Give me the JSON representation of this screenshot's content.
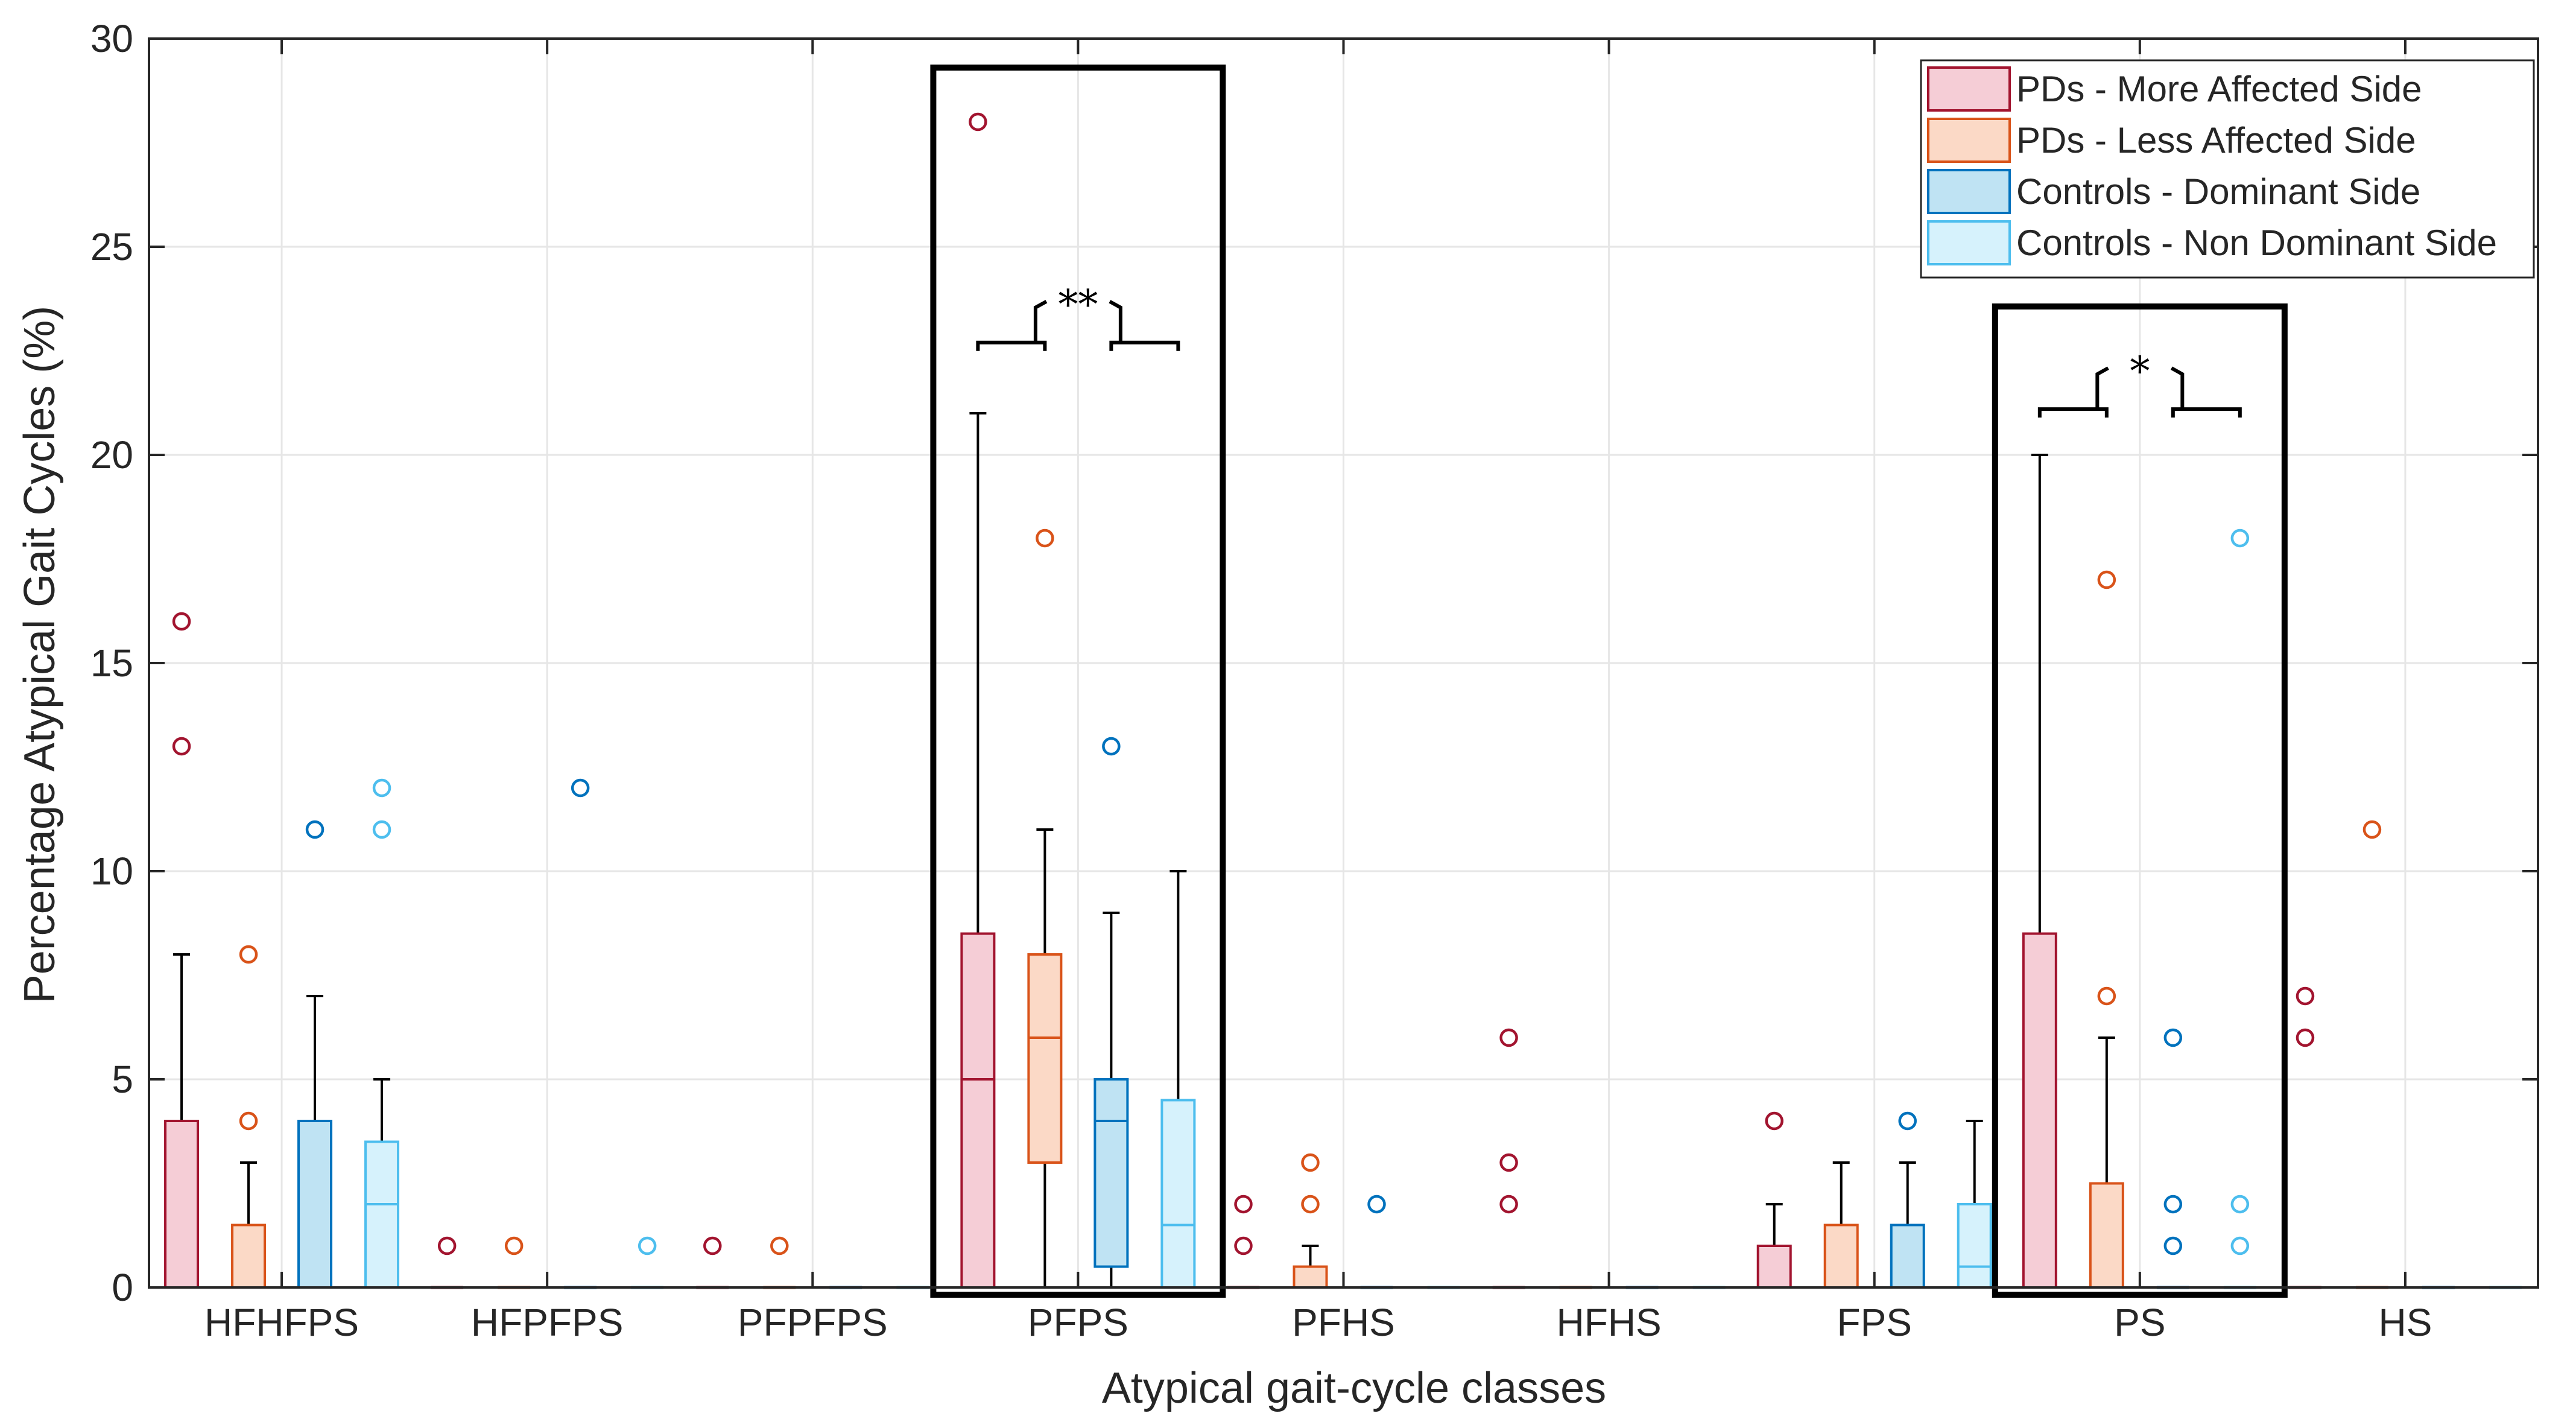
{
  "chart_data": {
    "type": "box",
    "title": "",
    "xlabel": "Atypical gait-cycle classes",
    "ylabel": "Percentage Atypical Gait Cycles (%)",
    "ylim": [
      0,
      30
    ],
    "yticks": [
      0,
      5,
      10,
      15,
      20,
      25,
      30
    ],
    "grid": true,
    "legend_position": "top-right",
    "categories": [
      "HFHFPS",
      "HFPFPS",
      "PFPFPS",
      "PFPS",
      "PFHS",
      "HFHS",
      "FPS",
      "PS",
      "HS"
    ],
    "series": [
      {
        "name": "PDs - More Affected Side",
        "edge": "#a2142f",
        "fill": "#f5cdd6",
        "boxes": [
          {
            "q1": 0,
            "median": 0,
            "q3": 4,
            "whisker_low": 0,
            "whisker_high": 8,
            "outliers": [
              13,
              16
            ]
          },
          {
            "q1": 0,
            "median": 0,
            "q3": 0,
            "whisker_low": 0,
            "whisker_high": 0,
            "outliers": [
              1
            ]
          },
          {
            "q1": 0,
            "median": 0,
            "q3": 0,
            "whisker_low": 0,
            "whisker_high": 0,
            "outliers": [
              1
            ]
          },
          {
            "q1": 0,
            "median": 5,
            "q3": 8.5,
            "whisker_low": 0,
            "whisker_high": 21,
            "outliers": [
              28
            ]
          },
          {
            "q1": 0,
            "median": 0,
            "q3": 0,
            "whisker_low": 0,
            "whisker_high": 0,
            "outliers": [
              1,
              2
            ]
          },
          {
            "q1": 0,
            "median": 0,
            "q3": 0,
            "whisker_low": 0,
            "whisker_high": 0,
            "outliers": [
              2,
              3,
              6
            ]
          },
          {
            "q1": 0,
            "median": 0,
            "q3": 1,
            "whisker_low": 0,
            "whisker_high": 2,
            "outliers": [
              4
            ]
          },
          {
            "q1": 0,
            "median": 0,
            "q3": 8.5,
            "whisker_low": 0,
            "whisker_high": 20,
            "outliers": []
          },
          {
            "q1": 0,
            "median": 0,
            "q3": 0,
            "whisker_low": 0,
            "whisker_high": 0,
            "outliers": [
              6,
              7
            ]
          }
        ]
      },
      {
        "name": "PDs - Less Affected Side",
        "edge": "#d95319",
        "fill": "#fbd9c6",
        "boxes": [
          {
            "q1": 0,
            "median": 0,
            "q3": 1.5,
            "whisker_low": 0,
            "whisker_high": 3,
            "outliers": [
              4,
              8
            ]
          },
          {
            "q1": 0,
            "median": 0,
            "q3": 0,
            "whisker_low": 0,
            "whisker_high": 0,
            "outliers": [
              1
            ]
          },
          {
            "q1": 0,
            "median": 0,
            "q3": 0,
            "whisker_low": 0,
            "whisker_high": 0,
            "outliers": [
              1
            ]
          },
          {
            "q1": 3,
            "median": 6,
            "q3": 8,
            "whisker_low": 0,
            "whisker_high": 11,
            "outliers": [
              18
            ]
          },
          {
            "q1": 0,
            "median": 0,
            "q3": 0.5,
            "whisker_low": 0,
            "whisker_high": 1,
            "outliers": [
              2,
              3
            ]
          },
          {
            "q1": 0,
            "median": 0,
            "q3": 0,
            "whisker_low": 0,
            "whisker_high": 0,
            "outliers": []
          },
          {
            "q1": 0,
            "median": 0,
            "q3": 1.5,
            "whisker_low": 0,
            "whisker_high": 3,
            "outliers": []
          },
          {
            "q1": 0,
            "median": 0,
            "q3": 2.5,
            "whisker_low": 0,
            "whisker_high": 6,
            "outliers": [
              7,
              17
            ]
          },
          {
            "q1": 0,
            "median": 0,
            "q3": 0,
            "whisker_low": 0,
            "whisker_high": 0,
            "outliers": [
              11
            ]
          }
        ]
      },
      {
        "name": "Controls - Dominant Side",
        "edge": "#0072bd",
        "fill": "#bfe3f3",
        "boxes": [
          {
            "q1": 0,
            "median": 0,
            "q3": 4,
            "whisker_low": 0,
            "whisker_high": 7,
            "outliers": [
              11
            ]
          },
          {
            "q1": 0,
            "median": 0,
            "q3": 0,
            "whisker_low": 0,
            "whisker_high": 0,
            "outliers": [
              12
            ]
          },
          {
            "q1": 0,
            "median": 0,
            "q3": 0,
            "whisker_low": 0,
            "whisker_high": 0,
            "outliers": []
          },
          {
            "q1": 0.5,
            "median": 4,
            "q3": 5,
            "whisker_low": 0,
            "whisker_high": 9,
            "outliers": [
              13
            ]
          },
          {
            "q1": 0,
            "median": 0,
            "q3": 0,
            "whisker_low": 0,
            "whisker_high": 0,
            "outliers": [
              2
            ]
          },
          {
            "q1": 0,
            "median": 0,
            "q3": 0,
            "whisker_low": 0,
            "whisker_high": 0,
            "outliers": []
          },
          {
            "q1": 0,
            "median": 0,
            "q3": 1.5,
            "whisker_low": 0,
            "whisker_high": 3,
            "outliers": [
              4
            ]
          },
          {
            "q1": 0,
            "median": 0,
            "q3": 0,
            "whisker_low": 0,
            "whisker_high": 0,
            "outliers": [
              1,
              2,
              6
            ]
          },
          {
            "q1": 0,
            "median": 0,
            "q3": 0,
            "whisker_low": 0,
            "whisker_high": 0,
            "outliers": []
          }
        ]
      },
      {
        "name": "Controls - Non Dominant Side",
        "edge": "#4dbeee",
        "fill": "#d6f2fc",
        "boxes": [
          {
            "q1": 0,
            "median": 2,
            "q3": 3.5,
            "whisker_low": 0,
            "whisker_high": 5,
            "outliers": [
              11,
              12
            ]
          },
          {
            "q1": 0,
            "median": 0,
            "q3": 0,
            "whisker_low": 0,
            "whisker_high": 0,
            "outliers": [
              1
            ]
          },
          {
            "q1": 0,
            "median": 0,
            "q3": 0,
            "whisker_low": 0,
            "whisker_high": 0,
            "outliers": []
          },
          {
            "q1": 0,
            "median": 1.5,
            "q3": 4.5,
            "whisker_low": 0,
            "whisker_high": 10,
            "outliers": []
          },
          {
            "q1": 0,
            "median": 0,
            "q3": 0,
            "whisker_low": 0,
            "whisker_high": 0,
            "outliers": []
          },
          {
            "q1": 0,
            "median": 0,
            "q3": 0,
            "whisker_low": 0,
            "whisker_high": 0,
            "outliers": []
          },
          {
            "q1": 0,
            "median": 0.5,
            "q3": 2,
            "whisker_low": 0,
            "whisker_high": 4,
            "outliers": []
          },
          {
            "q1": 0,
            "median": 0,
            "q3": 0,
            "whisker_low": 0,
            "whisker_high": 0,
            "outliers": [
              1,
              2,
              18
            ]
          },
          {
            "q1": 0,
            "median": 0,
            "q3": 0,
            "whisker_low": 0,
            "whisker_high": 0,
            "outliers": []
          }
        ]
      }
    ],
    "annotations": [
      {
        "category": "PFPS",
        "type": "significance",
        "label": "**",
        "highlighted": true,
        "bracket_y": 22.7
      },
      {
        "category": "PS",
        "type": "significance",
        "label": "*",
        "highlighted": true,
        "bracket_y": 21.1
      }
    ]
  }
}
